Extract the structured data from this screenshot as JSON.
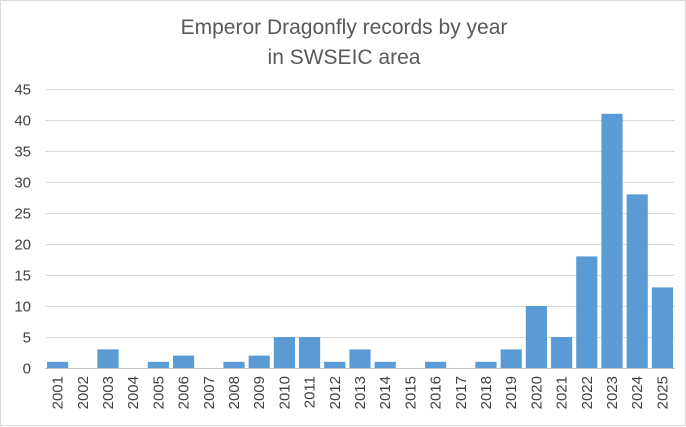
{
  "chart_data": {
    "type": "bar",
    "title": [
      "Emperor Dragonfly records by year",
      "in SWSEIC area"
    ],
    "xlabel": "",
    "ylabel": "",
    "ylim": [
      0,
      45
    ],
    "yticks": [
      0,
      5,
      10,
      15,
      20,
      25,
      30,
      35,
      40,
      45
    ],
    "grid": true,
    "legend": "none",
    "bar_color": "#5b9bd5",
    "categories": [
      "2001",
      "2002",
      "2003",
      "2004",
      "2005",
      "2006",
      "2007",
      "2008",
      "2009",
      "2010",
      "2011",
      "2012",
      "2013",
      "2014",
      "2015",
      "2016",
      "2017",
      "2018",
      "2019",
      "2020",
      "2021",
      "2022",
      "2023",
      "2024",
      "2025"
    ],
    "values": [
      1,
      0,
      3,
      0,
      1,
      2,
      0,
      1,
      2,
      5,
      5,
      1,
      3,
      1,
      0,
      1,
      0,
      1,
      3,
      10,
      5,
      18,
      41,
      28,
      13
    ]
  }
}
